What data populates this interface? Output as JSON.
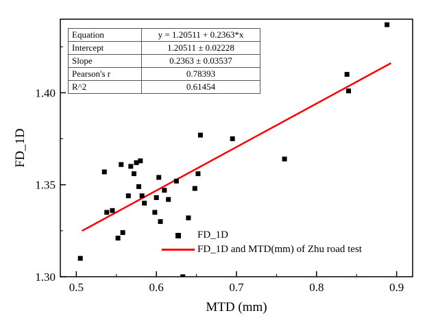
{
  "stats_table": {
    "rows": [
      {
        "label": "Equation",
        "value": "y = 1.20511 + 0.2363*x"
      },
      {
        "label": "Intercept",
        "value": "1.20511 ± 0.02228"
      },
      {
        "label": "Slope",
        "value": "0.2363 ± 0.03537"
      },
      {
        "label": "Pearson's r",
        "value": "0.78393"
      },
      {
        "label": "R^2",
        "value": "0.61454"
      }
    ]
  },
  "legend": {
    "items": [
      {
        "marker": "black-square-marker",
        "label": "FD_1D"
      },
      {
        "marker": "red-line-marker",
        "label": "FD_1D and MTD(mm) of Zhu road test"
      }
    ]
  },
  "chart_data": {
    "type": "scatter",
    "title": "",
    "xlabel": "MTD (mm)",
    "ylabel": "FD_1D",
    "xlim": [
      0.48,
      0.92
    ],
    "ylim": [
      1.3,
      1.44
    ],
    "xticks": [
      0.5,
      0.6,
      0.7,
      0.8,
      0.9
    ],
    "xtick_labels": [
      "0.5",
      "0.6",
      "0.7",
      "0.8",
      "0.9"
    ],
    "x_minor": [
      0.55,
      0.65,
      0.75,
      0.85
    ],
    "yticks": [
      1.3,
      1.35,
      1.4
    ],
    "ytick_labels": [
      "1.30",
      "1.35",
      "1.40"
    ],
    "y_minor": [
      1.325,
      1.375,
      1.425
    ],
    "grid": false,
    "legend_position": "bottom-center-inside",
    "marker_color": "#000000",
    "line_color": "#ff0000",
    "points": [
      [
        0.505,
        1.31
      ],
      [
        0.535,
        1.357
      ],
      [
        0.538,
        1.335
      ],
      [
        0.545,
        1.336
      ],
      [
        0.552,
        1.321
      ],
      [
        0.558,
        1.324
      ],
      [
        0.556,
        1.361
      ],
      [
        0.565,
        1.344
      ],
      [
        0.568,
        1.36
      ],
      [
        0.572,
        1.356
      ],
      [
        0.575,
        1.362
      ],
      [
        0.58,
        1.363
      ],
      [
        0.578,
        1.349
      ],
      [
        0.582,
        1.344
      ],
      [
        0.585,
        1.34
      ],
      [
        0.598,
        1.335
      ],
      [
        0.6,
        1.343
      ],
      [
        0.603,
        1.354
      ],
      [
        0.605,
        1.33
      ],
      [
        0.61,
        1.347
      ],
      [
        0.615,
        1.342
      ],
      [
        0.625,
        1.352
      ],
      [
        0.633,
        1.3
      ],
      [
        0.64,
        1.332
      ],
      [
        0.648,
        1.348
      ],
      [
        0.652,
        1.356
      ],
      [
        0.655,
        1.377
      ],
      [
        0.695,
        1.375
      ],
      [
        0.76,
        1.364
      ],
      [
        0.838,
        1.41
      ],
      [
        0.84,
        1.401
      ],
      [
        0.888,
        1.437
      ]
    ],
    "fit": {
      "equation": "y = 1.20511 + 0.2363*x",
      "intercept": 1.20511,
      "slope": 0.2363,
      "x_start": 0.507,
      "x_end": 0.893
    }
  }
}
